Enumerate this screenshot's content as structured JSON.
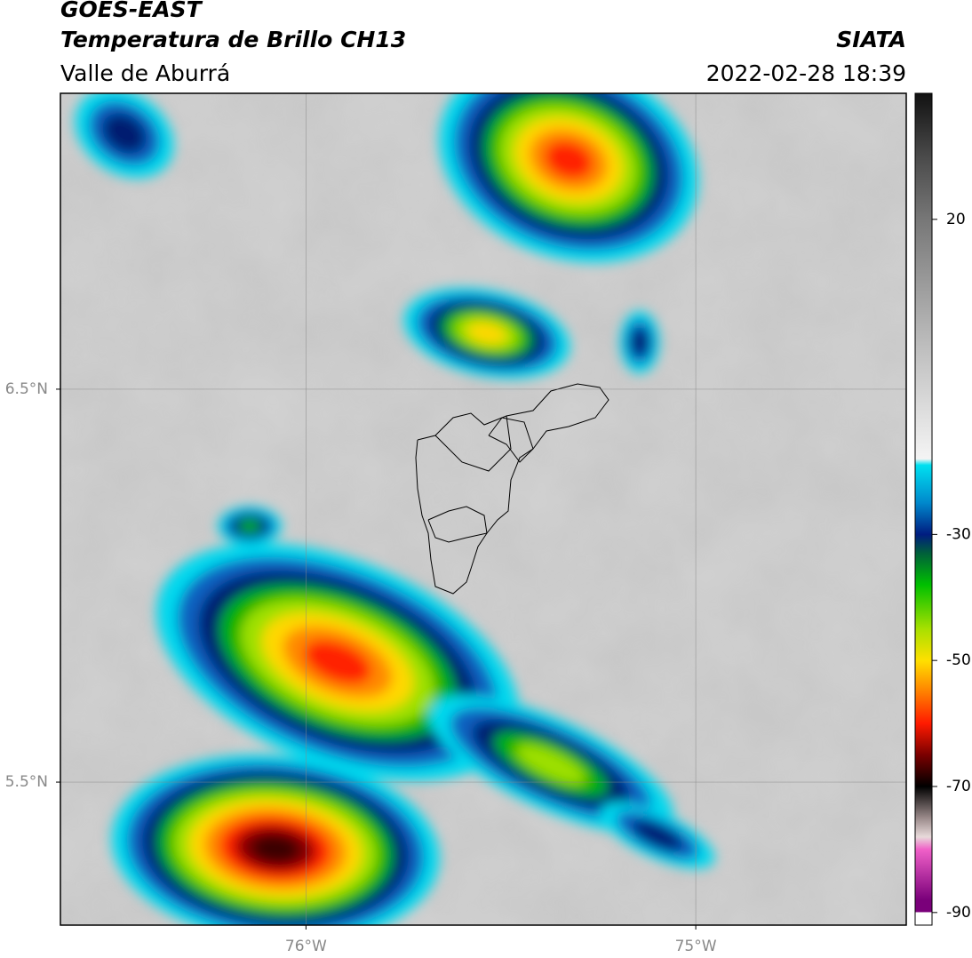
{
  "header": {
    "title": "GOES-EAST",
    "subtitle": "Temperatura de Brillo CH13",
    "region": "Valle de Aburrá",
    "source": "SIATA",
    "datetime": "2022-02-28 18:39"
  },
  "map": {
    "xlim": [
      -76.63,
      -74.46
    ],
    "ylim": [
      5.136,
      7.253
    ],
    "xticks": [
      {
        "value": -76,
        "label": "76°W"
      },
      {
        "value": -75,
        "label": "75°W"
      }
    ],
    "yticks": [
      {
        "value": 6.5,
        "label": "6.5°N"
      },
      {
        "value": 5.5,
        "label": "5.5°N"
      }
    ],
    "grid": true
  },
  "colorbar": {
    "lim": [
      -92,
      40
    ],
    "ticks": [
      20,
      -30,
      -50,
      -70,
      -90
    ],
    "stops": [
      {
        "value": 40,
        "color": "#111111"
      },
      {
        "value": 30,
        "color": "#4a4a4a"
      },
      {
        "value": 20,
        "color": "#777777"
      },
      {
        "value": 10,
        "color": "#9a9a9a"
      },
      {
        "value": 0,
        "color": "#bdbdbd"
      },
      {
        "value": -10,
        "color": "#dcdcdc"
      },
      {
        "value": -18,
        "color": "#f4f4f4"
      },
      {
        "value": -19,
        "color": "#00e0f0"
      },
      {
        "value": -25,
        "color": "#0088cc"
      },
      {
        "value": -30,
        "color": "#001c80"
      },
      {
        "value": -33,
        "color": "#00603a"
      },
      {
        "value": -38,
        "color": "#00c000"
      },
      {
        "value": -45,
        "color": "#a8e000"
      },
      {
        "value": -50,
        "color": "#ffe000"
      },
      {
        "value": -55,
        "color": "#ff8000"
      },
      {
        "value": -60,
        "color": "#ff1a00"
      },
      {
        "value": -65,
        "color": "#7a0000"
      },
      {
        "value": -70,
        "color": "#000000"
      },
      {
        "value": -75,
        "color": "#9a8a8a"
      },
      {
        "value": -78,
        "color": "#e8dada"
      },
      {
        "value": -80,
        "color": "#f060c8"
      },
      {
        "value": -88,
        "color": "#7a007a"
      },
      {
        "value": -89.9,
        "color": "#7a007a"
      },
      {
        "value": -90,
        "color": "#ffffff"
      }
    ]
  }
}
